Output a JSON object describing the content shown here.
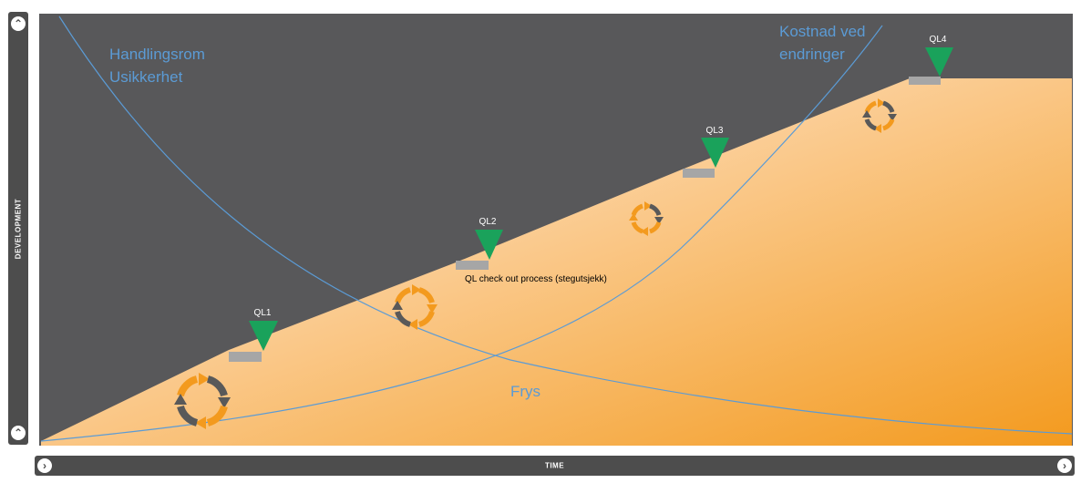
{
  "axes": {
    "y_label": "DEVELOPMENT",
    "x_label": "TIME"
  },
  "curves": {
    "uncertainty_label_line1": "Handlingsrom",
    "uncertainty_label_line2": "Usikkerhet",
    "cost_label_line1": "Kostnad ved",
    "cost_label_line2": "endringer",
    "freeze_label": "Frys"
  },
  "quality_gates": [
    {
      "label": "QL1"
    },
    {
      "label": "QL2"
    },
    {
      "label": "QL3"
    },
    {
      "label": "QL4"
    }
  ],
  "annotation": "QL check out process (stegutsjekk)",
  "colors": {
    "background": "#58585a",
    "bar": "#4d4d4d",
    "curve": "#5b9bd5",
    "gate": "#1aa25b",
    "gate_base": "#a6a6a6",
    "orange_light": "#fde2c2",
    "orange_dark": "#f39a1e",
    "cycle_gray": "#595959"
  },
  "icons": {
    "nav_up": "chevron-up-icon",
    "nav_right": "chevron-right-icon",
    "cycle": "cycle-arrows-icon"
  }
}
